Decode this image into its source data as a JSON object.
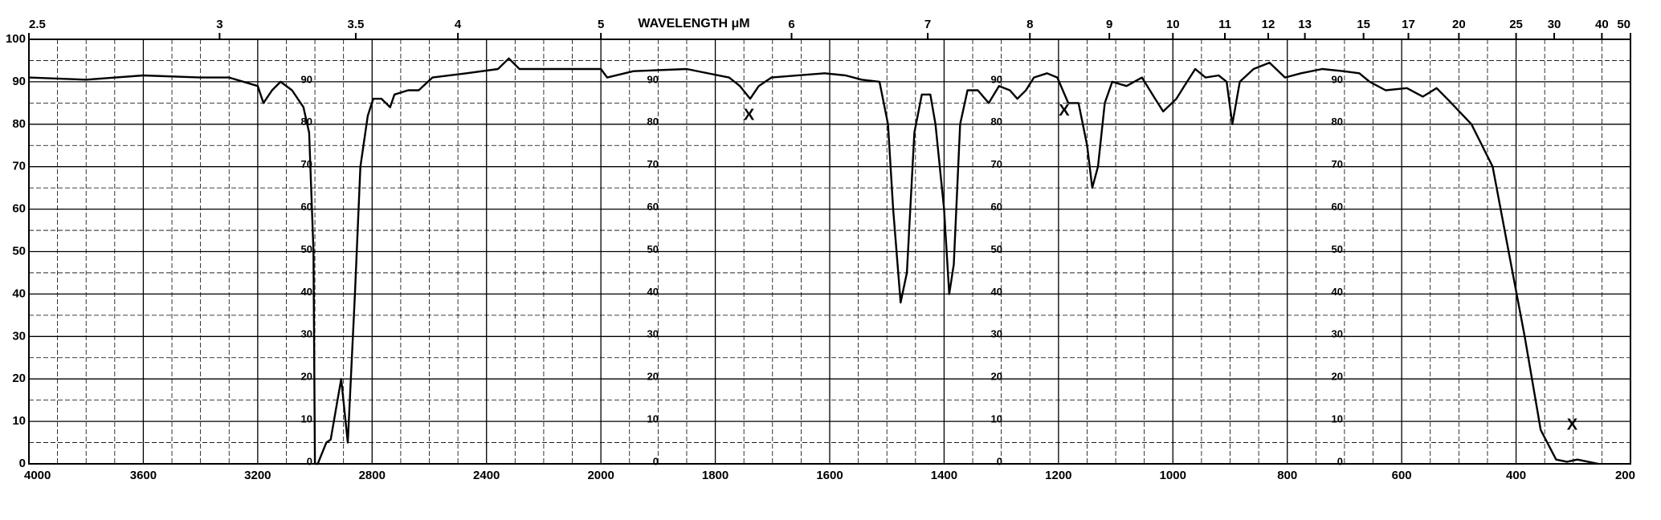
{
  "chart_data": {
    "type": "line",
    "x2label": "WAVELENGTH μM",
    "x": [
      4000,
      3800,
      3600,
      3400,
      3300,
      3200,
      3180,
      3150,
      3120,
      3080,
      3040,
      3020,
      3005,
      3000,
      2990,
      2960,
      2945,
      2908,
      2885,
      2860,
      2841,
      2815,
      2796,
      2767,
      2737,
      2722,
      2674,
      2637,
      2589,
      2470,
      2360,
      2322,
      2285,
      2174,
      2000,
      1989,
      1943,
      1850,
      1776,
      1757,
      1739,
      1724,
      1702,
      1609,
      1572,
      1544,
      1513,
      1498,
      1489,
      1476,
      1465,
      1452,
      1439,
      1424,
      1415,
      1400,
      1391,
      1383,
      1372,
      1359,
      1341,
      1322,
      1304,
      1285,
      1272,
      1257,
      1243,
      1220,
      1202,
      1183,
      1165,
      1150,
      1141,
      1131,
      1119,
      1106,
      1081,
      1054,
      1031,
      1017,
      994,
      980,
      961,
      943,
      920,
      906,
      896,
      883,
      859,
      831,
      804,
      776,
      739,
      702,
      674,
      656,
      628,
      591,
      563,
      539,
      517,
      478,
      441,
      413,
      385,
      357,
      330,
      311,
      293,
      274,
      256
    ],
    "values": [
      91,
      90.5,
      91.5,
      91,
      91,
      89,
      85,
      88,
      90,
      88,
      84,
      78,
      50,
      0,
      0,
      5,
      5.7,
      20,
      5,
      40,
      70,
      82,
      86,
      86,
      84,
      87,
      88,
      88,
      91,
      92,
      93,
      95.5,
      93,
      93,
      93,
      91,
      92.5,
      93,
      91,
      89,
      86,
      89,
      91,
      92,
      91.5,
      90.5,
      90,
      80,
      60,
      38,
      45,
      78,
      87,
      87,
      80,
      60,
      40,
      47,
      80,
      88,
      88,
      85,
      89,
      88,
      86,
      88,
      91,
      92,
      91,
      85,
      85,
      75,
      65,
      70,
      85,
      90,
      89,
      91,
      86,
      83,
      86,
      89,
      93,
      91,
      91.5,
      90,
      80,
      90,
      93,
      94.5,
      91,
      92,
      93,
      92.5,
      92,
      90,
      88,
      88.5,
      86.5,
      88.5,
      85.5,
      80,
      70,
      50,
      30,
      8,
      1,
      0.5,
      1,
      0.5,
      0
    ],
    "color": "#000000",
    "xlim": [
      4000,
      200
    ],
    "xticks": [
      4000,
      3600,
      3200,
      2800,
      2400,
      2000,
      1800,
      1600,
      1400,
      1200,
      1000,
      800,
      600,
      400,
      200
    ],
    "x2ticks": [
      2.5,
      3,
      3.5,
      4,
      5,
      6,
      7,
      8,
      9,
      10,
      11,
      12,
      13,
      15,
      17,
      20,
      25,
      30,
      40,
      50
    ],
    "ylim": [
      0,
      100
    ],
    "yticks": [
      0,
      10,
      20,
      30,
      40,
      50,
      60,
      70,
      80,
      90,
      100
    ],
    "grid": true,
    "annotations": [
      {
        "text": "X",
        "x": 1741,
        "y": 82
      },
      {
        "text": "X",
        "x": 1190,
        "y": 83
      },
      {
        "text": "X",
        "x": 302,
        "y": 9
      }
    ]
  }
}
